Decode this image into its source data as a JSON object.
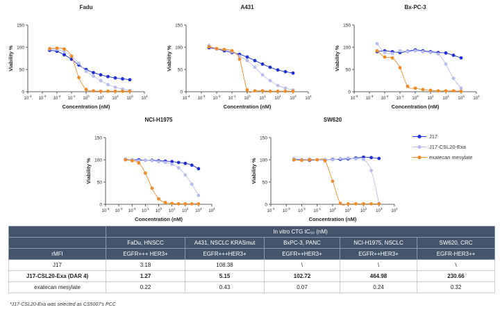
{
  "chart_data": [
    {
      "type": "line",
      "title": "Fadu",
      "xlabel": "Concentration (nM)",
      "ylabel": "Viability %",
      "xscale": "log",
      "xlim": [
        -4,
        4
      ],
      "ylim": [
        0,
        150
      ],
      "yticks": [
        0,
        50,
        100,
        150
      ],
      "series": [
        {
          "name": "J17",
          "x": [
            -2.5,
            -2.0,
            -1.5,
            -1.0,
            -0.5,
            0.0,
            0.5,
            1.0,
            1.5,
            2.0,
            2.5,
            3.0
          ],
          "y": [
            93,
            91,
            83,
            73,
            60,
            50,
            43,
            38,
            34,
            31,
            29,
            27
          ]
        },
        {
          "name": "J17-CSL20-Exa",
          "x": [
            -2.5,
            -2.0,
            -1.5,
            -1.0,
            -0.5,
            0.0,
            0.5,
            1.0,
            1.5,
            2.0,
            2.5,
            3.0
          ],
          "y": [
            96,
            95,
            90,
            80,
            64,
            46,
            35,
            25,
            16,
            10,
            6,
            3
          ]
        },
        {
          "name": "exatecan mesylate",
          "x": [
            -2.5,
            -2.0,
            -1.5,
            -1.0,
            -0.5,
            0.0,
            0.5,
            1.0,
            1.5,
            2.0,
            2.5,
            3.0
          ],
          "y": [
            97,
            98,
            96,
            80,
            32,
            5,
            2,
            1,
            1,
            1,
            1,
            1
          ]
        }
      ]
    },
    {
      "type": "line",
      "title": "A431",
      "xlabel": "Concentration (nM)",
      "ylabel": "Viability %",
      "xscale": "log",
      "xlim": [
        -4,
        4
      ],
      "ylim": [
        0,
        150
      ],
      "yticks": [
        0,
        50,
        100,
        150
      ],
      "series": [
        {
          "name": "J17",
          "x": [
            -2.5,
            -2.0,
            -1.5,
            -1.0,
            -0.5,
            0.0,
            0.5,
            1.0,
            1.5,
            2.0,
            2.5,
            3.0
          ],
          "y": [
            99,
            96,
            92,
            88,
            84,
            78,
            70,
            62,
            55,
            49,
            45,
            42
          ]
        },
        {
          "name": "J17-CSL20-Exa",
          "x": [
            -2.5,
            -2.0,
            -1.5,
            -1.0,
            -0.5,
            0.0,
            0.5,
            1.0,
            1.5,
            2.0,
            2.5,
            3.0
          ],
          "y": [
            104,
            96,
            95,
            90,
            80,
            70,
            55,
            38,
            25,
            14,
            8,
            4
          ]
        },
        {
          "name": "exatecan mesylate",
          "x": [
            -2.5,
            -2.0,
            -1.5,
            -1.0,
            -0.5,
            0.0,
            0.5,
            1.0,
            1.5,
            2.0,
            2.5,
            3.0
          ],
          "y": [
            101,
            97,
            95,
            92,
            73,
            4,
            2,
            2,
            1,
            1,
            1,
            1
          ]
        }
      ]
    },
    {
      "type": "line",
      "title": "Bx-PC-3",
      "xlabel": "Concentration (nM)",
      "ylabel": "Viability %",
      "xscale": "log",
      "xlim": [
        -4,
        4
      ],
      "ylim": [
        0,
        150
      ],
      "yticks": [
        0,
        50,
        100,
        150
      ],
      "series": [
        {
          "name": "J17",
          "x": [
            -2.5,
            -2.0,
            -1.5,
            -1.0,
            -0.5,
            0.0,
            0.5,
            1.0,
            1.5,
            2.0,
            2.5,
            3.0
          ],
          "y": [
            90,
            92,
            90,
            88,
            91,
            94,
            92,
            90,
            88,
            87,
            82,
            76
          ]
        },
        {
          "name": "J17-CSL20-Exa",
          "x": [
            -2.5,
            -2.0,
            -1.5,
            -1.0,
            -0.5,
            0.0,
            0.5,
            1.0,
            1.5,
            2.0,
            2.5,
            3.0
          ],
          "y": [
            108,
            88,
            86,
            92,
            90,
            92,
            90,
            88,
            85,
            62,
            30,
            8
          ]
        },
        {
          "name": "exatecan mesylate",
          "x": [
            -2.5,
            -2.0,
            -1.5,
            -1.0,
            -0.5,
            0.0,
            0.5,
            1.0,
            1.5,
            2.0,
            2.5,
            3.0
          ],
          "y": [
            92,
            78,
            76,
            54,
            12,
            8,
            5,
            3,
            2,
            2,
            2,
            1
          ]
        }
      ]
    },
    {
      "type": "line",
      "title": "NCI-H1975",
      "xlabel": "Concentration (nM)",
      "ylabel": "Viability %",
      "xscale": "log",
      "xlim": [
        -4,
        4
      ],
      "ylim": [
        0,
        150
      ],
      "yticks": [
        0,
        50,
        100,
        150
      ],
      "series": [
        {
          "name": "J17",
          "x": [
            -2.5,
            -2.0,
            -1.5,
            -1.0,
            -0.5,
            0.0,
            0.5,
            1.0,
            1.5,
            2.0,
            2.5,
            3.0
          ],
          "y": [
            101,
            100,
            100,
            99,
            99,
            98,
            97,
            96,
            94,
            92,
            88,
            80
          ]
        },
        {
          "name": "J17-CSL20-Exa",
          "x": [
            -2.5,
            -2.0,
            -1.5,
            -1.0,
            -0.5,
            0.0,
            0.5,
            1.0,
            1.5,
            2.0,
            2.5,
            3.0
          ],
          "y": [
            102,
            100,
            98,
            99,
            98,
            96,
            94,
            90,
            82,
            66,
            45,
            20
          ]
        },
        {
          "name": "exatecan mesylate",
          "x": [
            -2.5,
            -2.0,
            -1.5,
            -1.0,
            -0.5,
            0.0,
            0.5,
            1.0,
            1.5,
            2.0,
            2.5,
            3.0
          ],
          "y": [
            100,
            98,
            93,
            70,
            36,
            12,
            4,
            2,
            1,
            1,
            1,
            1
          ]
        }
      ]
    },
    {
      "type": "line",
      "title": "SW620",
      "xlabel": "Concentration (nM)",
      "ylabel": "Viability %",
      "xscale": "log",
      "xlim": [
        -4,
        4
      ],
      "ylim": [
        0,
        150
      ],
      "yticks": [
        0,
        50,
        100,
        150
      ],
      "series": [
        {
          "name": "J17",
          "x": [
            -2.5,
            -2.0,
            -1.5,
            -1.0,
            -0.5,
            0.0,
            0.5,
            1.0,
            1.5,
            2.0,
            2.5,
            3.0
          ],
          "y": [
            100,
            100,
            99,
            100,
            100,
            101,
            101,
            102,
            104,
            106,
            105,
            103
          ]
        },
        {
          "name": "J17-CSL20-Exa",
          "x": [
            -2.5,
            -2.0,
            -1.5,
            -1.0,
            -0.5,
            0.0,
            0.5,
            1.0,
            1.5,
            2.0,
            2.5,
            3.0
          ],
          "y": [
            103,
            101,
            102,
            100,
            101,
            100,
            103,
            104,
            102,
            101,
            76,
            2
          ]
        },
        {
          "name": "exatecan mesylate",
          "x": [
            -2.5,
            -2.0,
            -1.5,
            -1.0,
            -0.5,
            0.0,
            0.5,
            1.0,
            1.5,
            2.0,
            2.5,
            3.0
          ],
          "y": [
            100,
            99,
            100,
            100,
            98,
            52,
            2,
            1,
            1,
            1,
            1,
            1
          ]
        }
      ]
    }
  ],
  "series_colors": {
    "J17": "#1f2fd6",
    "J17-CSL20-Exa": "#b9bdee",
    "exatecan mesylate": "#f08a24"
  },
  "legend": {
    "items": [
      "J17",
      "J17-CSL20-Exa",
      "exatecan mesylate"
    ]
  },
  "table": {
    "group_header": "In vitro CTG IC₅₀ (nM)",
    "row_label_header": "rMFI",
    "columns": [
      {
        "cell_line": "FaDu, HNSCC",
        "profile": "EGFR+++ HER3+"
      },
      {
        "cell_line": "A431, NSCLC KRASmut",
        "profile": "EGFR+++HER3+"
      },
      {
        "cell_line": "BxPC-3, PANC",
        "profile": "EGFR++HER3+"
      },
      {
        "cell_line": "NCI-H1975, NSCLC",
        "profile": "EGFR++HER3+"
      },
      {
        "cell_line": "SW620, CRC",
        "profile": "EGFR-HER3++"
      }
    ],
    "rows": [
      {
        "name": "J17",
        "values": [
          "3.18",
          "108.38",
          "\\",
          "\\",
          "\\"
        ],
        "bold": false
      },
      {
        "name": "J17-CSL20-Exa (DAR 4)",
        "values": [
          "1.27",
          "5.15",
          "102.72",
          "464.98",
          "230.66"
        ],
        "bold": true
      },
      {
        "name": "exatecan mesylate",
        "values": [
          "0.22",
          "0.43",
          "0.07",
          "0.24",
          "0.32"
        ],
        "bold": false
      }
    ]
  },
  "footnote": "*J17-CSL20-Exa was selected as CS5007's PCC"
}
